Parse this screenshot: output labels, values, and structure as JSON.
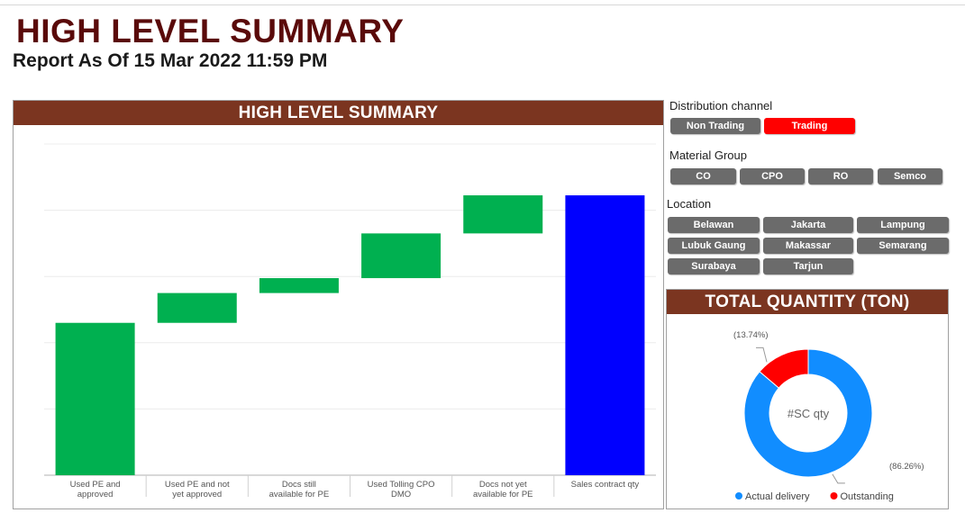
{
  "page": {
    "title": "HIGH LEVEL SUMMARY",
    "subtitle": "Report As Of 15 Mar 2022 11:59 PM"
  },
  "waterfall": {
    "header": "HIGH LEVEL SUMMARY",
    "chart_data": {
      "type": "bar",
      "subtype": "waterfall",
      "title": "HIGH LEVEL SUMMARY",
      "categories": [
        "Used PE and approved",
        "Used PE and not yet approved",
        "Docs still available for PE",
        "Used Tolling CPO DMO",
        "Docs not yet available for PE",
        "Sales contract qty"
      ],
      "increments": [
        46,
        9,
        4.5,
        13.5,
        11.5,
        84.5
      ],
      "is_total": [
        false,
        false,
        false,
        false,
        false,
        true
      ],
      "colors": [
        "#00b050",
        "#00b050",
        "#00b050",
        "#00b050",
        "#00b050",
        "#0000ff"
      ],
      "ylim": [
        0,
        100
      ],
      "grid": true,
      "xlabel": "",
      "ylabel": ""
    }
  },
  "slicers": {
    "distribution": {
      "title": "Distribution channel",
      "items": [
        {
          "label": "Non Trading",
          "selected": false
        },
        {
          "label": "Trading",
          "selected": true
        }
      ]
    },
    "material": {
      "title": "Material Group",
      "items": [
        {
          "label": "CO",
          "selected": false
        },
        {
          "label": "CPO",
          "selected": false
        },
        {
          "label": "RO",
          "selected": false
        },
        {
          "label": "Semco",
          "selected": false
        }
      ]
    },
    "location": {
      "title": "Location",
      "items": [
        {
          "label": "Belawan",
          "selected": false
        },
        {
          "label": "Jakarta",
          "selected": false
        },
        {
          "label": "Lampung",
          "selected": false
        },
        {
          "label": "Lubuk Gaung",
          "selected": false
        },
        {
          "label": "Makassar",
          "selected": false
        },
        {
          "label": "Semarang",
          "selected": false
        },
        {
          "label": "Surabaya",
          "selected": false
        },
        {
          "label": "Tarjun",
          "selected": false
        }
      ]
    }
  },
  "donut": {
    "header": "TOTAL QUANTITY (TON)",
    "chart_data": {
      "type": "pie",
      "subtype": "donut",
      "title": "TOTAL QUANTITY (TON)",
      "center_label": "#SC qty",
      "slices": [
        {
          "name": "Actual delivery",
          "percent": 86.26,
          "label": "(86.26%)",
          "color": "#118dff"
        },
        {
          "name": "Outstanding",
          "percent": 13.74,
          "label": "(13.74%)",
          "color": "#ff0000"
        }
      ],
      "legend_position": "bottom"
    }
  }
}
